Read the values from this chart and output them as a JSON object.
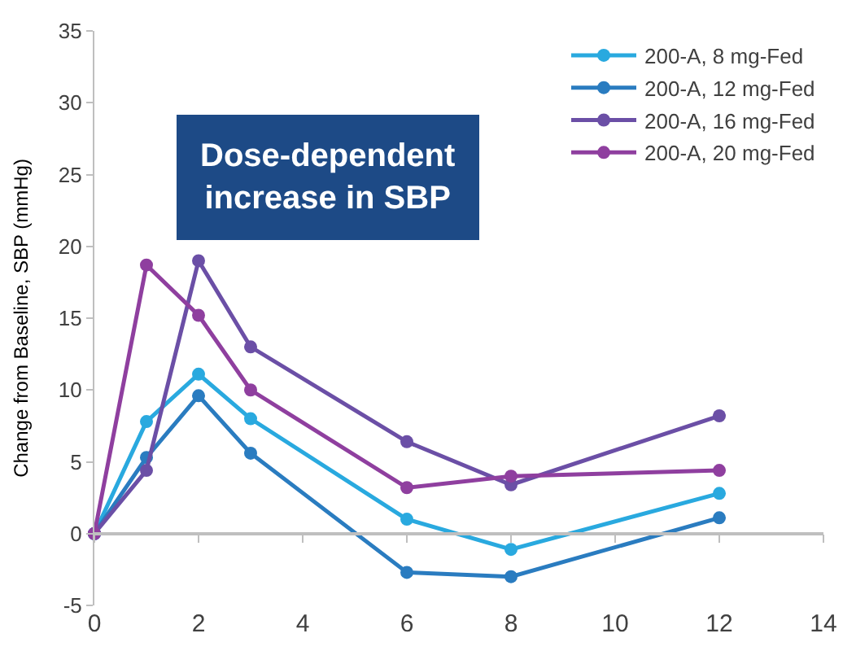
{
  "chart_data": {
    "type": "line",
    "ylabel": "Change from Baseline, SBP (mmHg)",
    "x": [
      0,
      1,
      2,
      3,
      6,
      8,
      12
    ],
    "series": [
      {
        "name": "200-A, 8 mg-Fed",
        "color": "#29a9df",
        "values": [
          0,
          7.8,
          11.1,
          8.0,
          1.0,
          -1.1,
          2.8
        ]
      },
      {
        "name": "200-A, 12 mg-Fed",
        "color": "#2a7cc0",
        "values": [
          0,
          5.3,
          9.6,
          5.6,
          -2.7,
          -3.0,
          1.1
        ]
      },
      {
        "name": "200-A, 16 mg-Fed",
        "color": "#6b4fa6",
        "values": [
          0,
          4.4,
          19.0,
          13.0,
          6.4,
          3.4,
          8.2
        ]
      },
      {
        "name": "200-A, 20 mg-Fed",
        "color": "#8f3f9f",
        "values": [
          0,
          18.7,
          15.2,
          10.0,
          3.2,
          4.0,
          4.4
        ]
      }
    ],
    "annotations": [
      "Dose-dependent\nincrease in SBP"
    ],
    "xlim": [
      0,
      14
    ],
    "xticks": [
      0,
      2,
      4,
      6,
      8,
      10,
      12,
      14
    ],
    "ylim": [
      -5,
      35
    ],
    "yticks": [
      -5,
      0,
      5,
      10,
      15,
      20,
      25,
      30,
      35
    ],
    "marker": "circle",
    "line_style": "solid",
    "legend": "top right"
  }
}
